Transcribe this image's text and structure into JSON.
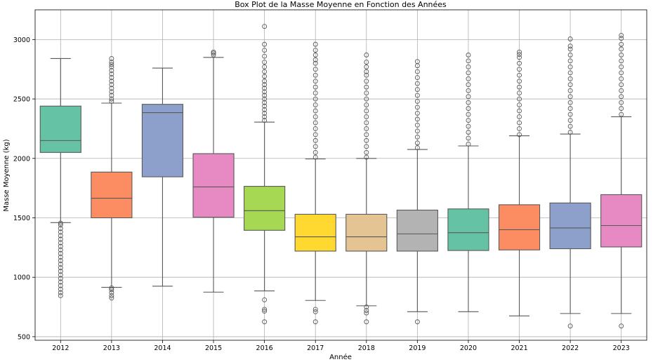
{
  "chart_data": {
    "type": "box",
    "title": "Box Plot de la Masse Moyenne en Fonction des Années",
    "xlabel": "Année",
    "ylabel": "Masse Moyenne (kg)",
    "ylim": [
      470,
      3250
    ],
    "yticks": [
      500,
      1000,
      1500,
      2000,
      2500,
      3000
    ],
    "grid": true,
    "categories": [
      "2012",
      "2013",
      "2014",
      "2015",
      "2016",
      "2017",
      "2018",
      "2019",
      "2020",
      "2021",
      "2022",
      "2023"
    ],
    "boxes": [
      {
        "year": "2012",
        "color": "#66c2a5",
        "whisker_low": 1460,
        "q1": 2050,
        "median": 2150,
        "q3": 2440,
        "whisker_high": 2840,
        "outliers_low": [
          845,
          870,
          900,
          930,
          960,
          990,
          1020,
          1050,
          1080,
          1110,
          1140,
          1170,
          1200,
          1230,
          1260,
          1290,
          1320,
          1350,
          1380,
          1410,
          1440,
          1455
        ],
        "outliers_high": []
      },
      {
        "year": "2013",
        "color": "#fc8d62",
        "whisker_low": 915,
        "q1": 1500,
        "median": 1665,
        "q3": 1885,
        "whisker_high": 2465,
        "outliers_low": [
          825,
          845,
          870,
          895,
          910
        ],
        "outliers_high": [
          2480,
          2500,
          2530,
          2560,
          2590,
          2620,
          2650,
          2680,
          2710,
          2740,
          2770,
          2790,
          2810,
          2840
        ]
      },
      {
        "year": "2014",
        "color": "#8da0cb",
        "whisker_low": 925,
        "q1": 1845,
        "median": 2385,
        "q3": 2455,
        "whisker_high": 2760,
        "outliers_low": [],
        "outliers_high": []
      },
      {
        "year": "2015",
        "color": "#e78ac3",
        "whisker_low": 875,
        "q1": 1505,
        "median": 1760,
        "q3": 2040,
        "whisker_high": 2850,
        "outliers_low": [],
        "outliers_high": [
          2870,
          2885,
          2895
        ]
      },
      {
        "year": "2016",
        "color": "#a6d854",
        "whisker_low": 885,
        "q1": 1395,
        "median": 1560,
        "q3": 1765,
        "whisker_high": 2305,
        "outliers_low": [
          625,
          715,
          730,
          810
        ],
        "outliers_high": [
          2320,
          2350,
          2380,
          2410,
          2440,
          2470,
          2500,
          2530,
          2560,
          2590,
          2620,
          2650,
          2690,
          2730,
          2770,
          2810,
          2860,
          2910,
          2960,
          3110
        ]
      },
      {
        "year": "2017",
        "color": "#ffd92f",
        "whisker_low": 805,
        "q1": 1220,
        "median": 1340,
        "q3": 1530,
        "whisker_high": 1995,
        "outliers_low": [
          625,
          710,
          730
        ],
        "outliers_high": [
          2010,
          2050,
          2100,
          2150,
          2200,
          2250,
          2300,
          2350,
          2400,
          2450,
          2500,
          2550,
          2600,
          2650,
          2700,
          2750,
          2800,
          2830,
          2870,
          2910,
          2960
        ]
      },
      {
        "year": "2018",
        "color": "#e5c494",
        "whisker_low": 760,
        "q1": 1220,
        "median": 1340,
        "q3": 1530,
        "whisker_high": 2000,
        "outliers_low": [
          625,
          700,
          720,
          750
        ],
        "outliers_high": [
          2010,
          2050,
          2100,
          2150,
          2200,
          2250,
          2300,
          2350,
          2400,
          2450,
          2500,
          2550,
          2600,
          2650,
          2700,
          2730,
          2770,
          2810,
          2870
        ]
      },
      {
        "year": "2019",
        "color": "#b3b3b3",
        "whisker_low": 710,
        "q1": 1220,
        "median": 1365,
        "q3": 1565,
        "whisker_high": 2075,
        "outliers_low": [
          625
        ],
        "outliers_high": [
          2090,
          2130,
          2180,
          2230,
          2280,
          2330,
          2380,
          2430,
          2480,
          2530,
          2580,
          2630,
          2680,
          2730,
          2780,
          2815
        ]
      },
      {
        "year": "2020",
        "color": "#66c2a5",
        "whisker_low": 710,
        "q1": 1225,
        "median": 1375,
        "q3": 1575,
        "whisker_high": 2105,
        "outliers_low": [],
        "outliers_high": [
          2120,
          2170,
          2220,
          2270,
          2320,
          2370,
          2420,
          2470,
          2520,
          2570,
          2620,
          2670,
          2720,
          2770,
          2820,
          2870
        ]
      },
      {
        "year": "2021",
        "color": "#fc8d62",
        "whisker_low": 675,
        "q1": 1230,
        "median": 1400,
        "q3": 1610,
        "whisker_high": 2190,
        "outliers_low": [],
        "outliers_high": [
          2200,
          2250,
          2300,
          2350,
          2400,
          2450,
          2500,
          2550,
          2600,
          2650,
          2700,
          2750,
          2800,
          2850,
          2875,
          2895
        ]
      },
      {
        "year": "2022",
        "color": "#8da0cb",
        "whisker_low": 695,
        "q1": 1240,
        "median": 1415,
        "q3": 1625,
        "whisker_high": 2205,
        "outliers_low": [
          590
        ],
        "outliers_high": [
          2220,
          2270,
          2320,
          2370,
          2420,
          2470,
          2520,
          2570,
          2620,
          2670,
          2720,
          2770,
          2820,
          2870,
          2920,
          2945,
          3005
        ]
      },
      {
        "year": "2023",
        "color": "#e78ac3",
        "whisker_low": 695,
        "q1": 1255,
        "median": 1435,
        "q3": 1695,
        "whisker_high": 2350,
        "outliers_low": [
          590
        ],
        "outliers_high": [
          2370,
          2420,
          2470,
          2520,
          2570,
          2620,
          2670,
          2720,
          2770,
          2820,
          2870,
          2920,
          2960,
          3010,
          3035
        ]
      }
    ]
  }
}
